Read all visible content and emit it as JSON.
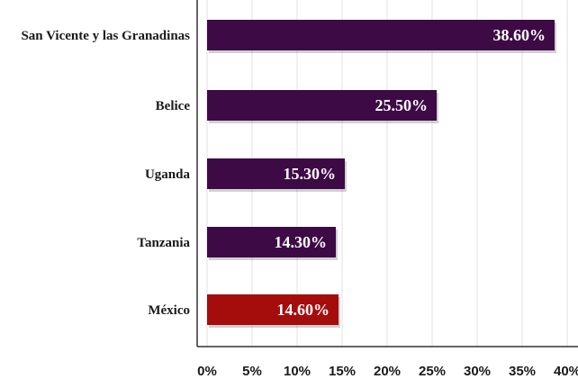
{
  "chart_data": {
    "type": "bar",
    "orientation": "horizontal",
    "categories": [
      "San Vicente y las Granadinas",
      "Belice",
      "Uganda",
      "Tanzania",
      "México"
    ],
    "values": [
      38.6,
      25.5,
      15.3,
      14.3,
      14.6
    ],
    "data_labels": [
      "38.60%",
      "25.50%",
      "15.30%",
      "14.30%",
      "14.60%"
    ],
    "bar_colors": [
      "#3d0a45",
      "#3d0a45",
      "#3d0a45",
      "#3d0a45",
      "#a50d0d"
    ],
    "xlim": [
      0,
      40
    ],
    "x_ticks": [
      0,
      5,
      10,
      15,
      20,
      25,
      30,
      35,
      40
    ],
    "x_tick_labels": [
      "0%",
      "5%",
      "10%",
      "15%",
      "20%",
      "25%",
      "30%",
      "35%",
      "40%"
    ],
    "title": "",
    "xlabel": "",
    "ylabel": "",
    "grid": "vertical",
    "legend": "none"
  }
}
